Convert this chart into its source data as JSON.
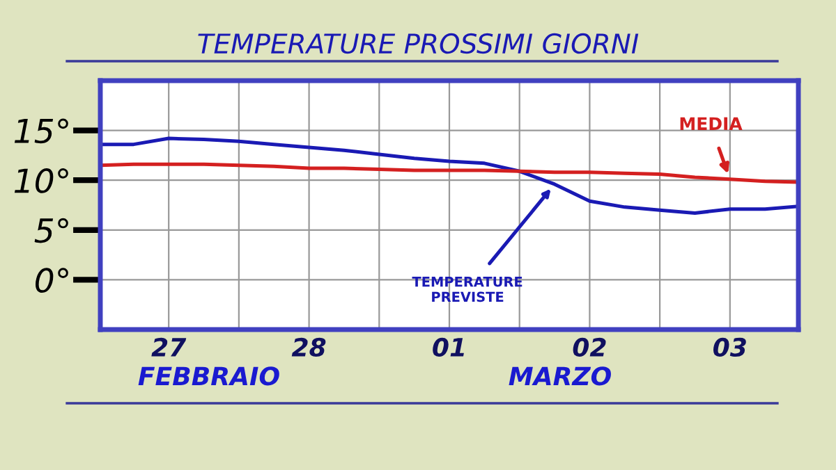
{
  "chart_data": {
    "type": "line",
    "title": "TEMPERATURE PROSSIMI GIORNI",
    "annotations": [
      "FEBBRAIO",
      "MARZO"
    ],
    "categories": [
      null,
      null,
      "27",
      null,
      null,
      null,
      "28",
      null,
      null,
      null,
      "01",
      null,
      null,
      null,
      "02",
      null,
      null,
      null,
      "03",
      null,
      null
    ],
    "series": [
      {
        "name": "TEMPERATURE PREVISTE",
        "color": "#1a1ab4",
        "values": [
          13.6,
          13.6,
          14.2,
          14.1,
          13.9,
          13.6,
          13.3,
          13.0,
          12.6,
          12.2,
          11.9,
          11.7,
          10.9,
          9.6,
          7.9,
          7.3,
          7.0,
          6.7,
          7.1,
          7.1,
          7.4
        ]
      },
      {
        "name": "MEDIA",
        "color": "#d42020",
        "values": [
          11.5,
          11.6,
          11.6,
          11.6,
          11.5,
          11.4,
          11.2,
          11.2,
          11.1,
          11.0,
          11.0,
          11.0,
          10.9,
          10.8,
          10.8,
          10.7,
          10.6,
          10.3,
          10.1,
          9.9,
          9.8
        ]
      }
    ],
    "ylim": [
      -5,
      20
    ],
    "yticks": [
      {
        "value": 0,
        "label": "0°"
      },
      {
        "value": 5,
        "label": "5°"
      },
      {
        "value": 10,
        "label": "10°"
      },
      {
        "value": 15,
        "label": "15°"
      }
    ],
    "grid": true,
    "legend": false,
    "marker": "none",
    "line_style": "solid"
  }
}
